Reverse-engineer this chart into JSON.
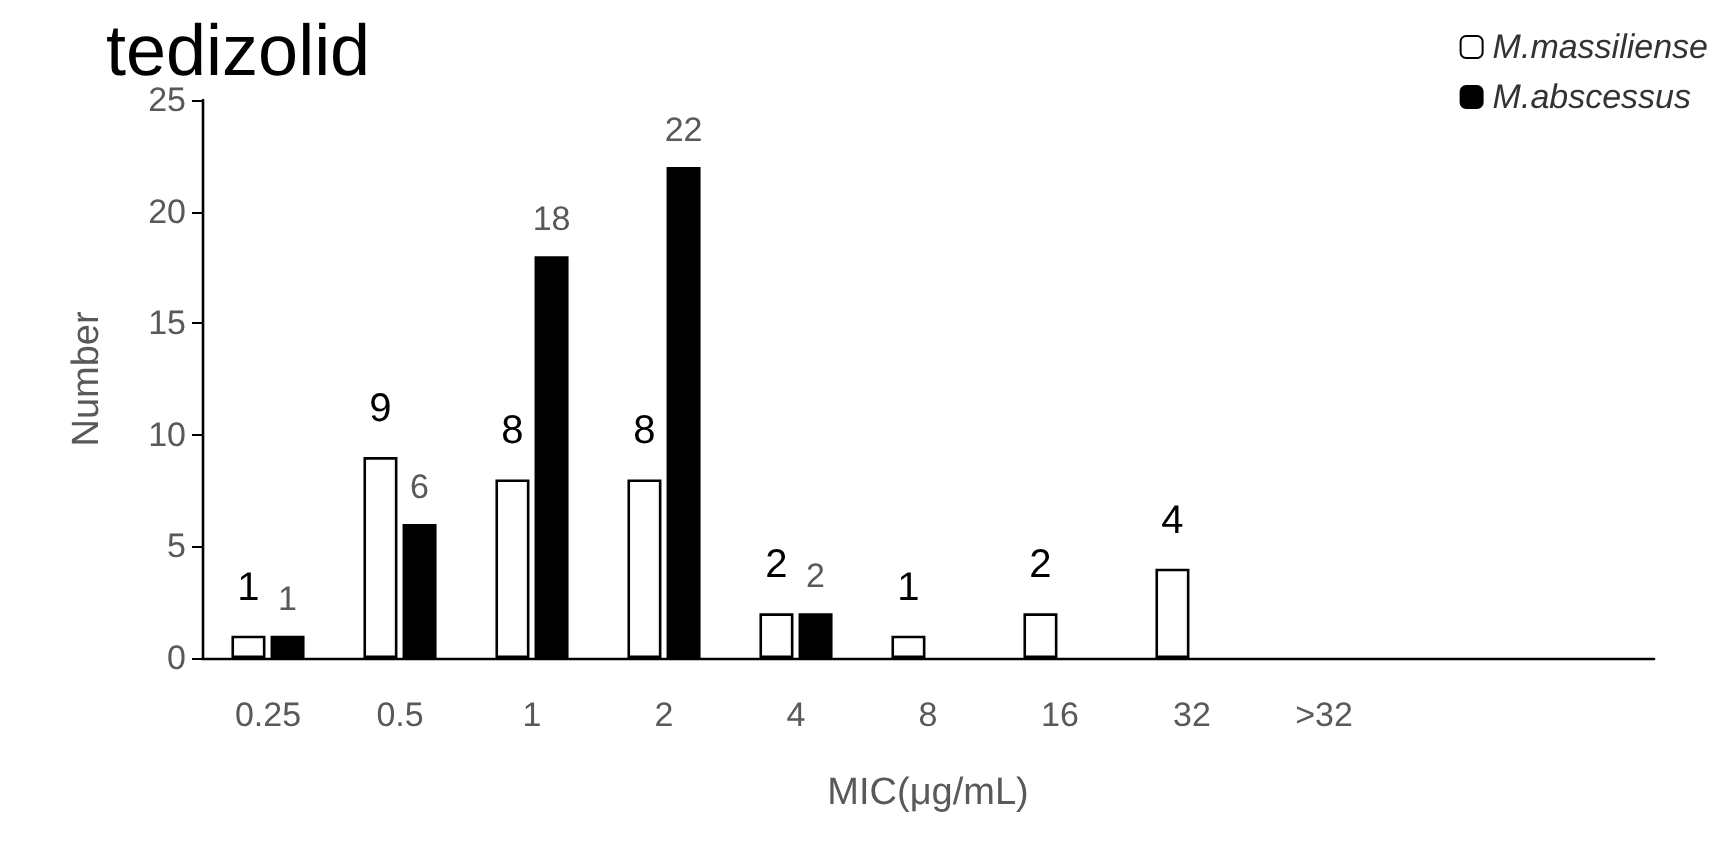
{
  "chart_data": {
    "type": "bar",
    "title": "tedizolid",
    "xlabel": "MIC(μg/mL)",
    "ylabel": "Number",
    "categories": [
      "0.25",
      "0.5",
      "1",
      "2",
      "4",
      "8",
      "16",
      "32",
      ">32",
      null,
      null
    ],
    "series": [
      {
        "name": "M.massiliense",
        "color": "#ffffff",
        "values": [
          1,
          9,
          8,
          8,
          2,
          1,
          2,
          4,
          null,
          null,
          null
        ]
      },
      {
        "name": "M.abscessus",
        "color": "#000000",
        "values": [
          1,
          6,
          18,
          22,
          2,
          null,
          null,
          null,
          null,
          null,
          null
        ]
      }
    ],
    "ylim": [
      0,
      25
    ],
    "yticks": [
      0,
      5,
      10,
      15,
      20,
      25
    ],
    "grid": false,
    "legend": "top right",
    "data_labels": true
  }
}
